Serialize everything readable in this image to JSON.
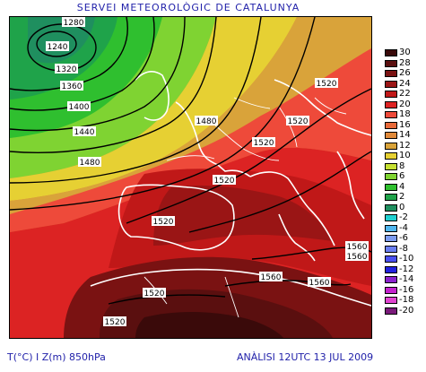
{
  "header": {
    "title": "SERVEI METEOROLÒGIC DE CATALUNYA"
  },
  "footer": {
    "left": "T(°C) I Z(m) 850hPa",
    "right": "ANÀLISI 12UTC 13 JUL 2009"
  },
  "legend": {
    "entries": [
      {
        "label": "30",
        "color": "#3a0a0a"
      },
      {
        "label": "28",
        "color": "#5a0f0f"
      },
      {
        "label": "26",
        "color": "#7a1212"
      },
      {
        "label": "24",
        "color": "#9a1515"
      },
      {
        "label": "22",
        "color": "#c01818"
      },
      {
        "label": "20",
        "color": "#dc2323"
      },
      {
        "label": "18",
        "color": "#ee4a3a"
      },
      {
        "label": "16",
        "color": "#e86a3a"
      },
      {
        "label": "14",
        "color": "#e0893a"
      },
      {
        "label": "12",
        "color": "#d9a33a"
      },
      {
        "label": "10",
        "color": "#e6d033"
      },
      {
        "label": "8",
        "color": "#c6e033"
      },
      {
        "label": "6",
        "color": "#7fd332"
      },
      {
        "label": "4",
        "color": "#2fbf2f"
      },
      {
        "label": "2",
        "color": "#1fa34a"
      },
      {
        "label": "0",
        "color": "#1f8f5f"
      },
      {
        "label": "-2",
        "color": "#20d0d0"
      },
      {
        "label": "-4",
        "color": "#50b6ee"
      },
      {
        "label": "-6",
        "color": "#7c9cf0"
      },
      {
        "label": "-8",
        "color": "#6a7ef0"
      },
      {
        "label": "-10",
        "color": "#4a50f0"
      },
      {
        "label": "-12",
        "color": "#2222dd"
      },
      {
        "label": "-14",
        "color": "#8a22cc"
      },
      {
        "label": "-16",
        "color": "#c222cc"
      },
      {
        "label": "-18",
        "color": "#e044d0"
      },
      {
        "label": "-20",
        "color": "#7a1a7a"
      }
    ]
  },
  "contours": {
    "labels": [
      {
        "text": "1280"
      },
      {
        "text": "1240"
      },
      {
        "text": "1320"
      },
      {
        "text": "1360"
      },
      {
        "text": "1400"
      },
      {
        "text": "1440"
      },
      {
        "text": "1480"
      },
      {
        "text": "1480"
      },
      {
        "text": "1520"
      },
      {
        "text": "1520"
      },
      {
        "text": "1520"
      },
      {
        "text": "1520"
      },
      {
        "text": "1520"
      },
      {
        "text": "1520"
      },
      {
        "text": "1560"
      },
      {
        "text": "1560"
      },
      {
        "text": "1560"
      },
      {
        "text": "1560"
      },
      {
        "text": "1520"
      }
    ]
  }
}
